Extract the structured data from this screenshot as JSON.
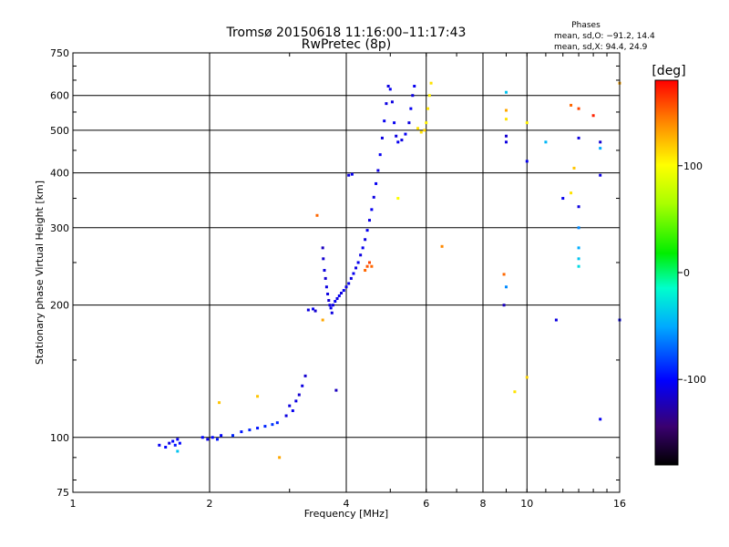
{
  "chart_data": {
    "type": "scatter",
    "title": "Tromsø 20150618 11:16:00–11:17:43",
    "subtitle": "RwPretec (8p)",
    "xlabel": "Frequency [MHz]",
    "ylabel": "Stationary phase Virtual Height [km]",
    "x_scale": "log",
    "y_scale": "log",
    "xlim": [
      1,
      16
    ],
    "ylim": [
      75,
      750
    ],
    "x_ticks": [
      1,
      2,
      4,
      6,
      8,
      10,
      16
    ],
    "y_ticks": [
      75,
      100,
      200,
      300,
      400,
      500,
      600,
      750
    ],
    "grid": true,
    "legend": {
      "title": "Phases",
      "lines": [
        "mean, sd,O: −91.2, 14.4",
        "mean, sd,X:  94.4, 24.9"
      ]
    },
    "colorbar": {
      "label": "[deg]",
      "range": [
        -180,
        180
      ],
      "ticks": [
        -100,
        0,
        100
      ]
    },
    "series": [
      {
        "points": [
          [
            1.55,
            96,
            -105
          ],
          [
            1.6,
            95,
            -100
          ],
          [
            1.63,
            97,
            -110
          ],
          [
            1.66,
            98,
            -100
          ],
          [
            1.68,
            96,
            -95
          ],
          [
            1.7,
            99,
            -105
          ],
          [
            1.72,
            97,
            -100
          ],
          [
            1.93,
            100,
            -100
          ],
          [
            1.98,
            99,
            -105
          ],
          [
            2.03,
            100,
            -100
          ],
          [
            2.08,
            99,
            -95
          ],
          [
            2.12,
            101,
            -100
          ],
          [
            2.25,
            101,
            -90
          ],
          [
            2.35,
            103,
            -95
          ],
          [
            2.45,
            104,
            -90
          ],
          [
            2.55,
            105,
            -95
          ],
          [
            2.65,
            106,
            -90
          ],
          [
            2.75,
            107,
            -85
          ],
          [
            2.82,
            108,
            -90
          ],
          [
            2.95,
            112,
            -110
          ],
          [
            3.0,
            118,
            -110
          ],
          [
            3.05,
            115,
            -105
          ],
          [
            3.1,
            121,
            -110
          ],
          [
            3.15,
            125,
            -115
          ],
          [
            3.2,
            131,
            -110
          ],
          [
            3.25,
            138,
            -115
          ],
          [
            3.3,
            195,
            -110
          ],
          [
            3.38,
            196,
            -105
          ],
          [
            3.42,
            194,
            -115
          ],
          [
            3.55,
            270,
            -120
          ],
          [
            3.56,
            255,
            -115
          ],
          [
            3.58,
            240,
            -110
          ],
          [
            3.6,
            230,
            -115
          ],
          [
            3.62,
            220,
            -110
          ],
          [
            3.64,
            212,
            -110
          ],
          [
            3.66,
            205,
            -115
          ],
          [
            3.68,
            200,
            -110
          ],
          [
            3.7,
            197,
            -105
          ],
          [
            3.72,
            192,
            -110
          ],
          [
            3.74,
            200,
            -110
          ],
          [
            3.78,
            204,
            -105
          ],
          [
            3.82,
            207,
            -110
          ],
          [
            3.86,
            210,
            -105
          ],
          [
            3.9,
            213,
            -110
          ],
          [
            3.95,
            216,
            -105
          ],
          [
            4.0,
            220,
            -110
          ],
          [
            4.05,
            224,
            -105
          ],
          [
            4.1,
            230,
            -110
          ],
          [
            4.15,
            236,
            -105
          ],
          [
            4.2,
            243,
            -110
          ],
          [
            4.25,
            250,
            -105
          ],
          [
            4.3,
            260,
            -110
          ],
          [
            4.35,
            270,
            -105
          ],
          [
            4.4,
            282,
            -110
          ],
          [
            4.45,
            296,
            -105
          ],
          [
            4.5,
            312,
            -110
          ],
          [
            4.55,
            330,
            -105
          ],
          [
            4.6,
            352,
            -110
          ],
          [
            4.65,
            378,
            -105
          ],
          [
            4.7,
            405,
            -110
          ],
          [
            4.75,
            440,
            -105
          ],
          [
            4.8,
            480,
            -110
          ],
          [
            4.85,
            525,
            -105
          ],
          [
            4.9,
            575,
            -110
          ],
          [
            4.95,
            630,
            -110
          ],
          [
            4.05,
            395,
            -110
          ],
          [
            4.12,
            397,
            -105
          ],
          [
            5.0,
            620,
            -105
          ],
          [
            5.05,
            580,
            -110
          ],
          [
            5.1,
            520,
            -105
          ],
          [
            5.15,
            485,
            -110
          ],
          [
            5.2,
            470,
            -105
          ],
          [
            5.3,
            475,
            -110
          ],
          [
            5.4,
            490,
            -105
          ],
          [
            5.5,
            520,
            -110
          ],
          [
            5.55,
            560,
            -105
          ],
          [
            5.6,
            600,
            -110
          ],
          [
            5.65,
            630,
            -105
          ],
          [
            9.0,
            470,
            -110
          ],
          [
            9.0,
            485,
            -115
          ],
          [
            10.0,
            425,
            -105
          ],
          [
            12.0,
            350,
            -105
          ],
          [
            13.0,
            480,
            -110
          ],
          [
            13.0,
            335,
            -110
          ],
          [
            14.5,
            470,
            -115
          ],
          [
            14.5,
            395,
            -110
          ],
          [
            11.6,
            185,
            -110
          ],
          [
            14.5,
            110,
            -105
          ],
          [
            16.0,
            185,
            -105
          ],
          [
            8.9,
            200,
            -120
          ],
          [
            3.8,
            128,
            -120
          ]
        ]
      },
      {
        "points": [
          [
            3.45,
            320,
            150
          ],
          [
            3.55,
            185,
            130
          ],
          [
            4.4,
            240,
            150
          ],
          [
            4.45,
            245,
            155
          ],
          [
            4.5,
            250,
            160
          ],
          [
            4.55,
            245,
            150
          ],
          [
            5.75,
            505,
            110
          ],
          [
            5.85,
            495,
            110
          ],
          [
            5.95,
            500,
            115
          ],
          [
            6.0,
            520,
            105
          ],
          [
            6.05,
            560,
            110
          ],
          [
            6.1,
            600,
            105
          ],
          [
            6.15,
            640,
            110
          ],
          [
            5.2,
            350,
            100
          ],
          [
            6.5,
            272,
            140
          ],
          [
            9.0,
            530,
            110
          ],
          [
            10.0,
            520,
            105
          ],
          [
            8.9,
            235,
            150
          ],
          [
            9.0,
            555,
            130
          ],
          [
            12.5,
            570,
            150
          ],
          [
            13.0,
            560,
            160
          ],
          [
            14.0,
            540,
            170
          ],
          [
            12.5,
            360,
            110
          ],
          [
            16.0,
            640,
            130
          ],
          [
            2.1,
            120,
            120
          ],
          [
            2.55,
            124,
            120
          ],
          [
            2.85,
            90,
            130
          ],
          [
            12.7,
            410,
            120
          ],
          [
            9.4,
            127,
            110
          ],
          [
            10.0,
            137,
            115
          ]
        ]
      },
      {
        "points": [
          [
            1.7,
            93,
            -40
          ],
          [
            9.0,
            220,
            -60
          ],
          [
            9.0,
            610,
            -40
          ],
          [
            13.0,
            270,
            -50
          ],
          [
            13.0,
            255,
            -40
          ],
          [
            13.0,
            245,
            -30
          ],
          [
            11.0,
            470,
            -45
          ],
          [
            13.0,
            300,
            -60
          ],
          [
            14.5,
            455,
            -50
          ]
        ]
      }
    ]
  }
}
